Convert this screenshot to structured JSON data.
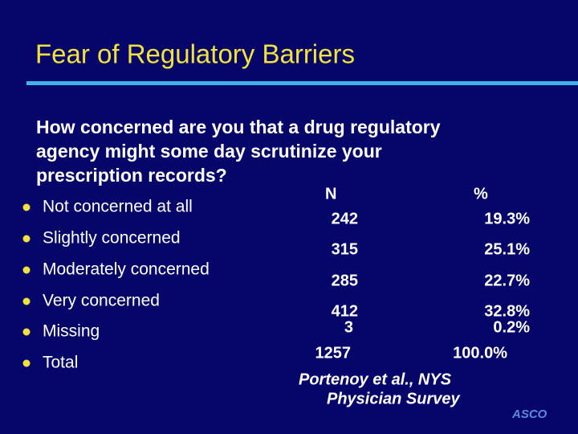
{
  "header": {
    "title": "Fear of Regulatory Barriers"
  },
  "question": [
    "How concerned are you that a drug regulatory",
    "agency might some day scrutinize your",
    "prescription records?"
  ],
  "table": {
    "columns": [
      "N",
      "%"
    ],
    "rows": [
      [
        "Not concerned at all",
        "242",
        "19.3%"
      ],
      [
        "Slightly concerned",
        "315",
        "25.1%"
      ],
      [
        "Moderately concerned",
        "285",
        "22.7%"
      ],
      [
        "Very concerned",
        "412",
        "32.8%"
      ],
      [
        "Missing",
        "3",
        "0.2%"
      ],
      [
        "Total",
        "1257",
        "100.0%"
      ]
    ]
  },
  "citation": [
    "Portenoy et al., NYS",
    "Physician Survey"
  ],
  "logo": "ASCO"
}
